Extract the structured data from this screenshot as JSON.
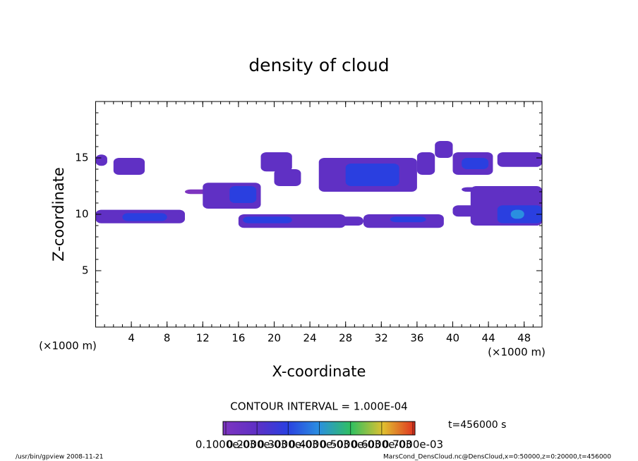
{
  "chart_data": {
    "type": "contour",
    "title": "density of cloud",
    "xlabel": "X-coordinate",
    "ylabel": "Z-coordinate",
    "xunit": "(×1000 m)",
    "yunit": "(×1000 m)",
    "xlim": [
      0,
      50
    ],
    "ylim": [
      0,
      20
    ],
    "xticks": [
      4,
      8,
      12,
      16,
      20,
      24,
      28,
      32,
      36,
      40,
      44,
      48
    ],
    "yticks": [
      5,
      10,
      15
    ],
    "contour_interval": "CONTOUR INTERVAL = 1.000E-04",
    "time_label": "t=456000 s",
    "footer_left": "/usr/bin/gpview   2008-11-21",
    "footer_right": "MarsCond_DensCloud.nc@DensCloud,x=0:50000,z=0:20000,t=456000",
    "colorbar": {
      "ticks": [
        {
          "value": 0.0001,
          "label": "0.1000e-03"
        },
        {
          "value": 0.0002,
          "label": "0.2000e-03"
        },
        {
          "value": 0.0003,
          "label": "0.3000e-03"
        },
        {
          "value": 0.0004,
          "label": "0.4000e-03"
        },
        {
          "value": 0.0005,
          "label": "0.5000e-03"
        },
        {
          "value": 0.0006,
          "label": "0.6000e-03"
        },
        {
          "value": 0.0007,
          "label": "0.7000e-03"
        }
      ],
      "colors": [
        "#7e35c0",
        "#6030c4",
        "#2a3fe0",
        "#2a8fe0",
        "#30c060",
        "#e0c030",
        "#e03020"
      ]
    },
    "patches": [
      {
        "x": [
          0,
          1.3
        ],
        "z": [
          14.3,
          15.3
        ],
        "value": 0.0002
      },
      {
        "x": [
          2,
          5.5
        ],
        "z": [
          13.5,
          15
        ],
        "value": 0.0002
      },
      {
        "x": [
          0,
          10
        ],
        "z": [
          9.2,
          10.4
        ],
        "value": 0.0002
      },
      {
        "x": [
          3,
          8
        ],
        "z": [
          9.4,
          10.1
        ],
        "value": 0.0003
      },
      {
        "x": [
          10,
          16
        ],
        "z": [
          11.8,
          12.2
        ],
        "value": 0.0001
      },
      {
        "x": [
          12,
          18.5
        ],
        "z": [
          10.5,
          12.8
        ],
        "value": 0.0002
      },
      {
        "x": [
          15,
          18
        ],
        "z": [
          11,
          12.5
        ],
        "value": 0.0003
      },
      {
        "x": [
          18.5,
          22
        ],
        "z": [
          13.8,
          15.5
        ],
        "value": 0.0002
      },
      {
        "x": [
          20,
          23
        ],
        "z": [
          12.5,
          14
        ],
        "value": 0.0002
      },
      {
        "x": [
          16,
          28
        ],
        "z": [
          8.8,
          10
        ],
        "value": 0.0002
      },
      {
        "x": [
          16.5,
          22
        ],
        "z": [
          9.2,
          9.8
        ],
        "value": 0.0003
      },
      {
        "x": [
          24,
          30
        ],
        "z": [
          9,
          9.8
        ],
        "value": 0.0002
      },
      {
        "x": [
          30,
          39
        ],
        "z": [
          8.8,
          10
        ],
        "value": 0.0002
      },
      {
        "x": [
          33,
          37
        ],
        "z": [
          9.3,
          9.8
        ],
        "value": 0.0003
      },
      {
        "x": [
          25,
          36
        ],
        "z": [
          12,
          15
        ],
        "value": 0.0002
      },
      {
        "x": [
          28,
          34
        ],
        "z": [
          12.5,
          14.5
        ],
        "value": 0.0003
      },
      {
        "x": [
          36,
          38
        ],
        "z": [
          13.5,
          15.5
        ],
        "value": 0.0002
      },
      {
        "x": [
          38,
          40
        ],
        "z": [
          15,
          16.5
        ],
        "value": 0.0002
      },
      {
        "x": [
          40,
          44.5
        ],
        "z": [
          13.5,
          15.5
        ],
        "value": 0.0002
      },
      {
        "x": [
          41,
          44
        ],
        "z": [
          14,
          15
        ],
        "value": 0.0003
      },
      {
        "x": [
          45,
          50
        ],
        "z": [
          14.2,
          15.5
        ],
        "value": 0.0002
      },
      {
        "x": [
          40,
          44
        ],
        "z": [
          9.8,
          10.8
        ],
        "value": 0.0002
      },
      {
        "x": [
          42,
          50
        ],
        "z": [
          9,
          12.5
        ],
        "value": 0.0002
      },
      {
        "x": [
          41,
          46
        ],
        "z": [
          12,
          12.4
        ],
        "value": 0.0002
      },
      {
        "x": [
          45,
          50
        ],
        "z": [
          9.2,
          10.8
        ],
        "value": 0.0003
      },
      {
        "x": [
          46.5,
          48
        ],
        "z": [
          9.6,
          10.4
        ],
        "value": 0.0004
      }
    ]
  }
}
